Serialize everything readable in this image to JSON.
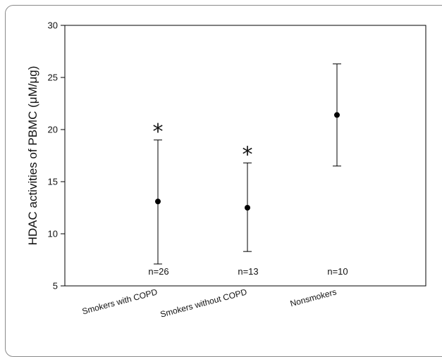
{
  "chart_data": {
    "type": "scatter",
    "title": "",
    "xlabel": "",
    "ylabel": "HDAC activities of PBMC (μM/μg)",
    "ylim": [
      5,
      30
    ],
    "yticks": [
      "5",
      "10",
      "15",
      "20",
      "25",
      "30"
    ],
    "categories": [
      "Smokers with COPD",
      "Smokers without COPD",
      "Nonsmokers"
    ],
    "series": [
      {
        "mean": [
          13.1,
          12.5,
          21.4
        ],
        "lower": [
          7.1,
          8.3,
          16.5
        ],
        "upper": [
          19.0,
          16.8,
          26.3
        ]
      }
    ],
    "n_labels": [
      "n=26",
      "n=13",
      "n=10"
    ],
    "significance": [
      "*",
      "*",
      ""
    ],
    "grid": false,
    "colors": {
      "marker": "#000000",
      "axis": "#000000"
    }
  }
}
